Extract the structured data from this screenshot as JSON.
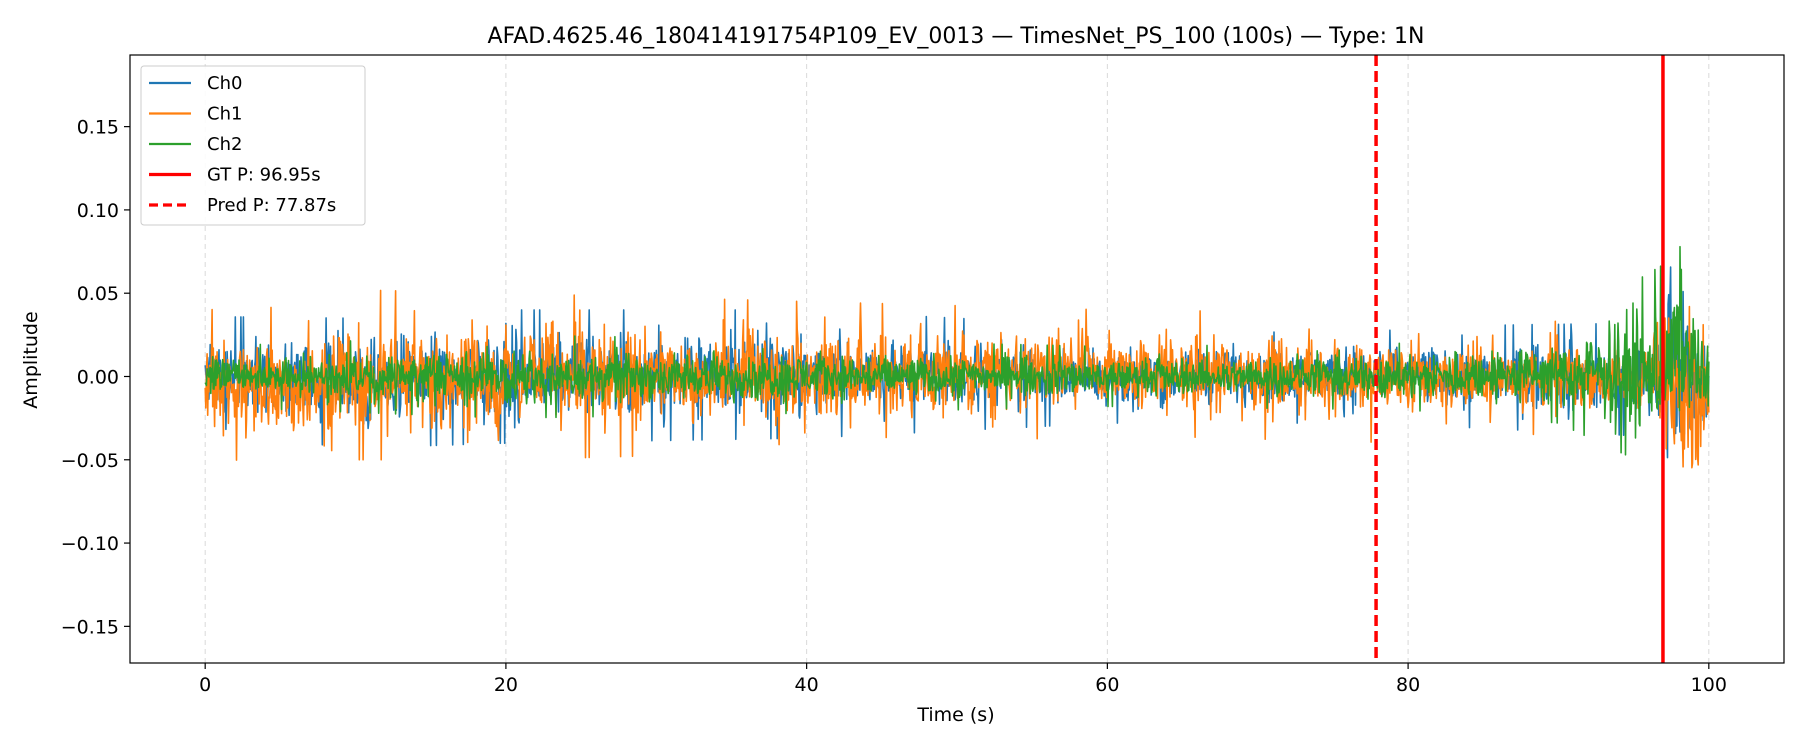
{
  "chart_data": {
    "type": "line",
    "title": "AFAD.4625.46_180414191754P109_EV_0013 — TimesNet_PS_100 (100s) — Type: 1N",
    "xlabel": "Time (s)",
    "ylabel": "Amplitude",
    "xlim": [
      -5,
      105
    ],
    "ylim": [
      -0.172,
      0.193
    ],
    "x_ticks": [
      0,
      20,
      40,
      60,
      80,
      100
    ],
    "x_tick_labels": [
      "0",
      "20",
      "40",
      "60",
      "80",
      "100"
    ],
    "y_ticks": [
      -0.15,
      -0.1,
      -0.05,
      0.0,
      0.05,
      0.1,
      0.15
    ],
    "y_tick_labels": [
      "−0.15",
      "−0.10",
      "−0.05",
      "0.00",
      "0.05",
      "0.10",
      "0.15"
    ],
    "grid": "vertical dashed (x-axis only)",
    "legend_position": "upper-left",
    "series": [
      {
        "name": "Ch0",
        "color": "#1f77b4",
        "envelope_description": "noise about 0, typical amplitude ±0.03 until ~97s, then spikes",
        "envelope_points": [
          {
            "t": 0,
            "max": 0.036,
            "min": -0.034
          },
          {
            "t": 10,
            "max": 0.035,
            "min": -0.043
          },
          {
            "t": 20,
            "max": 0.04,
            "min": -0.04
          },
          {
            "t": 40,
            "max": 0.04,
            "min": -0.037
          },
          {
            "t": 60,
            "max": 0.03,
            "min": -0.028
          },
          {
            "t": 78,
            "max": 0.03,
            "min": -0.028
          },
          {
            "t": 96,
            "max": 0.032,
            "min": -0.036
          },
          {
            "t": 97.5,
            "max": 0.095,
            "min": -0.09
          },
          {
            "t": 99,
            "max": 0.06,
            "min": -0.07
          },
          {
            "t": 100,
            "max": 0.03,
            "min": -0.03
          }
        ]
      },
      {
        "name": "Ch1",
        "color": "#ff7f0e",
        "envelope_description": "noise about 0, typical amplitude ±0.035 until ~97s, then spikes",
        "envelope_points": [
          {
            "t": 0,
            "max": 0.04,
            "min": -0.045
          },
          {
            "t": 6,
            "max": 0.042,
            "min": -0.06
          },
          {
            "t": 10,
            "max": 0.052,
            "min": -0.05
          },
          {
            "t": 20,
            "max": 0.05,
            "min": -0.05
          },
          {
            "t": 40,
            "max": 0.045,
            "min": -0.045
          },
          {
            "t": 60,
            "max": 0.04,
            "min": -0.035
          },
          {
            "t": 80,
            "max": 0.038,
            "min": -0.04
          },
          {
            "t": 96,
            "max": 0.03,
            "min": -0.03
          },
          {
            "t": 97.2,
            "max": 0.09,
            "min": -0.08
          },
          {
            "t": 100,
            "max": 0.055,
            "min": -0.087
          }
        ]
      },
      {
        "name": "Ch2",
        "color": "#2ca02c",
        "envelope_description": "smaller noise about 0, typical amplitude ±0.02 until ~97s, peaks near 0.10 at ~98s",
        "envelope_points": [
          {
            "t": 0,
            "max": 0.018,
            "min": -0.018
          },
          {
            "t": 20,
            "max": 0.025,
            "min": -0.025
          },
          {
            "t": 40,
            "max": 0.022,
            "min": -0.022
          },
          {
            "t": 60,
            "max": 0.018,
            "min": -0.018
          },
          {
            "t": 80,
            "max": 0.02,
            "min": -0.02
          },
          {
            "t": 90,
            "max": 0.03,
            "min": -0.028
          },
          {
            "t": 97.5,
            "max": 0.07,
            "min": -0.06
          },
          {
            "t": 98,
            "max": 0.1,
            "min": -0.05
          },
          {
            "t": 99.5,
            "max": 0.04,
            "min": -0.04
          }
        ]
      }
    ],
    "markers": [
      {
        "name": "GT P: 96.95s",
        "x": 96.95,
        "color": "#ff0000",
        "style": "solid"
      },
      {
        "name": "Pred P: 77.87s",
        "x": 77.87,
        "color": "#ff0000",
        "style": "dashed"
      }
    ]
  }
}
